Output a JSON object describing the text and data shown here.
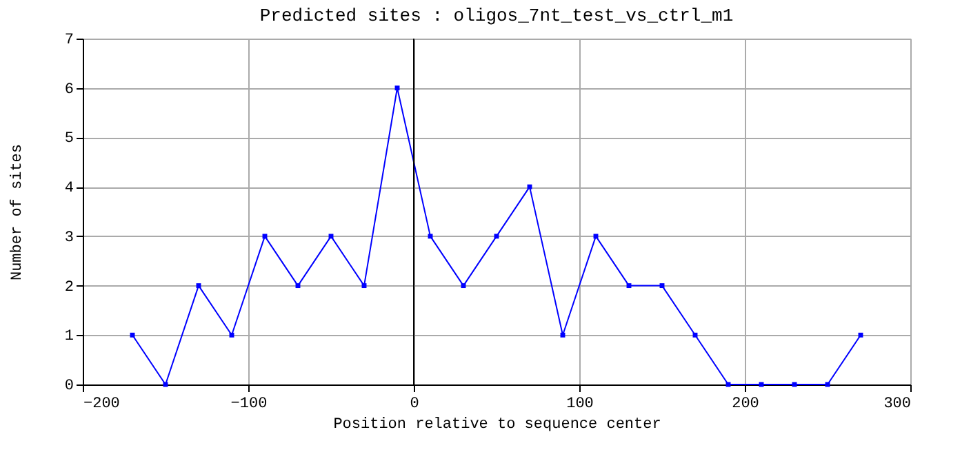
{
  "chart_data": {
    "type": "line",
    "title": "Predicted sites : oligos_7nt_test_vs_ctrl_m1",
    "xlabel": "Position relative to sequence center",
    "ylabel": "Number of sites",
    "x": [
      -170,
      -150,
      -130,
      -110,
      -90,
      -70,
      -50,
      -30,
      -10,
      10,
      30,
      50,
      70,
      90,
      110,
      130,
      150,
      170,
      190,
      210,
      230,
      250,
      270
    ],
    "series": [
      {
        "color": "#0000ff",
        "values": [
          1,
          0,
          2,
          1,
          3,
          2,
          3,
          2,
          6,
          3,
          2,
          3,
          4,
          1,
          3,
          2,
          2,
          1,
          0,
          0,
          0,
          0,
          1
        ]
      }
    ],
    "xlim": [
      -200,
      300
    ],
    "xticks": [
      -200,
      -100,
      0,
      100,
      200,
      300
    ],
    "ylim": [
      0,
      7
    ],
    "yticks": [
      0,
      1,
      2,
      3,
      4,
      5,
      6,
      7
    ],
    "ref_lines": [
      {
        "axis": "x",
        "value": 0,
        "color": "#000000"
      }
    ],
    "grid": true,
    "marker": "square",
    "line_style": "solid"
  }
}
